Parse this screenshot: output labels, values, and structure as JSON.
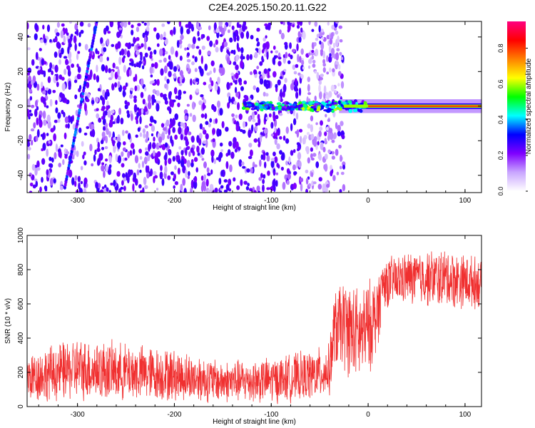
{
  "title": "C2E4.2025.150.20.11.G22",
  "chart_data": [
    {
      "type": "heatmap",
      "xlabel": "Height of straight line (km)",
      "ylabel": "Frequency (Hz)",
      "xlim": [
        -352,
        117
      ],
      "ylim": [
        -50,
        49
      ],
      "xticks": [
        -300,
        -200,
        -100,
        0,
        100
      ],
      "yticks": [
        -40,
        -20,
        0,
        20,
        40
      ],
      "colorbar": {
        "label": "Normalized spectral amplitude",
        "range": [
          0,
          0.95
        ],
        "ticks": [
          "0.0",
          "0.2",
          "0.4",
          "0.6",
          "0.8"
        ],
        "tick_values": [
          0,
          0.2,
          0.4,
          0.6,
          0.8
        ],
        "colors": [
          "#ffffff",
          "#c9a6ff",
          "#7f00ff",
          "#0000ff",
          "#00ffff",
          "#00ff00",
          "#ffff00",
          "#ff8000",
          "#ff0000",
          "#ff0080"
        ]
      },
      "noise_region": [
        -352,
        -45
      ],
      "signal_line": {
        "x_start": -130,
        "x_end": 117,
        "frequency": 0,
        "amplitude": 0.85
      },
      "drift_streak": [
        [
          -313,
          -47
        ],
        [
          -280,
          49
        ]
      ]
    },
    {
      "type": "line",
      "xlabel": "Height of straight line (km)",
      "ylabel": "SNR (10 * v/v)",
      "xlim": [
        -352,
        117
      ],
      "ylim": [
        0,
        1000
      ],
      "xticks": [
        -300,
        -200,
        -100,
        0,
        100
      ],
      "yticks": [
        0,
        200,
        400,
        600,
        800,
        1000
      ],
      "line_color": "#f03030",
      "envelope": [
        {
          "x": -352,
          "low": 10,
          "high": 330
        },
        {
          "x": -300,
          "low": 20,
          "high": 420
        },
        {
          "x": -200,
          "low": 15,
          "high": 350
        },
        {
          "x": -150,
          "low": 10,
          "high": 280
        },
        {
          "x": -100,
          "low": 10,
          "high": 300
        },
        {
          "x": -60,
          "low": 20,
          "high": 340
        },
        {
          "x": -40,
          "low": 40,
          "high": 380
        },
        {
          "x": -35,
          "low": 200,
          "high": 700
        },
        {
          "x": -25,
          "low": 180,
          "high": 780
        },
        {
          "x": -10,
          "low": 100,
          "high": 720
        },
        {
          "x": 0,
          "low": 150,
          "high": 760
        },
        {
          "x": 10,
          "low": 300,
          "high": 800
        },
        {
          "x": 15,
          "low": 560,
          "high": 880
        },
        {
          "x": 40,
          "low": 580,
          "high": 920
        },
        {
          "x": 80,
          "low": 560,
          "high": 940
        },
        {
          "x": 117,
          "low": 560,
          "high": 880
        }
      ]
    }
  ]
}
